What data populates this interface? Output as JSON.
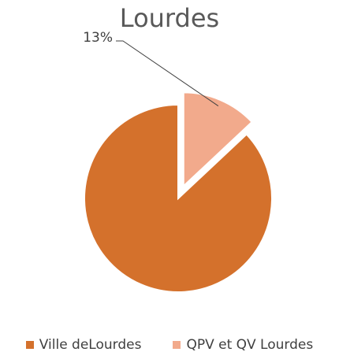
{
  "chart_data": {
    "type": "pie",
    "title": "Lourdes",
    "categories": [
      "Ville deLourdes",
      "QPV et QV Lourdes"
    ],
    "values": [
      87,
      13
    ],
    "colors": [
      "#D4712C",
      "#F2AA8C"
    ],
    "data_labels": [
      "",
      "13%"
    ],
    "exploded": [
      false,
      true
    ],
    "legend_position": "bottom"
  }
}
